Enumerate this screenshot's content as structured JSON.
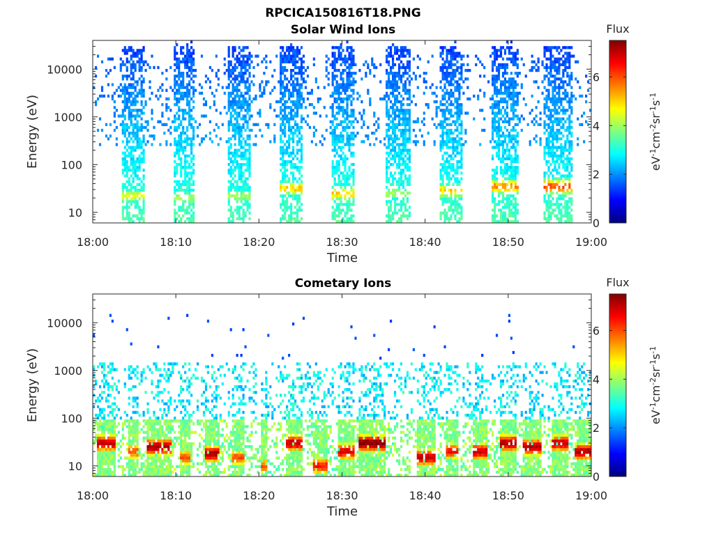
{
  "figure": {
    "title": "RPCICA150816T18.PNG"
  },
  "colormap": [
    "#00007f",
    "#0000ff",
    "#007fff",
    "#00ffff",
    "#7fff7f",
    "#ffff00",
    "#ff7f00",
    "#ff0000",
    "#7f0000"
  ],
  "chart_data": [
    {
      "type": "heatmap",
      "title": "Solar Wind Ions",
      "xlabel": "Time",
      "ylabel": "Energy (eV)",
      "x_ticks": [
        "18:00",
        "18:10",
        "18:20",
        "18:30",
        "18:40",
        "18:50",
        "19:00"
      ],
      "y_ticks": [
        "10",
        "100",
        "1000",
        "10000"
      ],
      "y_scale": "log",
      "ylim": [
        6,
        40000
      ],
      "xlim": [
        "18:00",
        "19:00"
      ],
      "colorbar": {
        "label": "Flux",
        "units": "eV⁻¹cm⁻²sr⁻¹s⁻¹",
        "ticks": [
          "0",
          "2",
          "4",
          "6"
        ],
        "range": [
          0,
          7.5
        ]
      },
      "bursts": [
        {
          "start_min": 3.5,
          "end_min": 6.2,
          "peak_energy_eV": 22,
          "peak_flux": 4.5
        },
        {
          "start_min": 9.8,
          "end_min": 12.3,
          "peak_energy_eV": 20,
          "peak_flux": 4.0
        },
        {
          "start_min": 16.3,
          "end_min": 18.9,
          "peak_energy_eV": 22,
          "peak_flux": 4.0
        },
        {
          "start_min": 22.5,
          "end_min": 25.3,
          "peak_energy_eV": 32,
          "peak_flux": 5.0
        },
        {
          "start_min": 28.8,
          "end_min": 31.5,
          "peak_energy_eV": 25,
          "peak_flux": 5.0
        },
        {
          "start_min": 35.2,
          "end_min": 38.2,
          "peak_energy_eV": 25,
          "peak_flux": 4.0
        },
        {
          "start_min": 41.8,
          "end_min": 44.5,
          "peak_energy_eV": 28,
          "peak_flux": 5.0
        },
        {
          "start_min": 48.0,
          "end_min": 51.2,
          "peak_energy_eV": 35,
          "peak_flux": 5.5
        },
        {
          "start_min": 54.3,
          "end_min": 57.7,
          "peak_energy_eV": 35,
          "peak_flux": 6.0
        }
      ]
    },
    {
      "type": "heatmap",
      "title": "Cometary Ions",
      "xlabel": "Time",
      "ylabel": "Energy (eV)",
      "x_ticks": [
        "18:00",
        "18:10",
        "18:20",
        "18:30",
        "18:40",
        "18:50",
        "19:00"
      ],
      "y_ticks": [
        "10",
        "100",
        "1000",
        "10000"
      ],
      "y_scale": "log",
      "ylim": [
        6,
        40000
      ],
      "xlim": [
        "18:00",
        "19:00"
      ],
      "colorbar": {
        "label": "Flux",
        "units": "eV⁻¹cm⁻²sr⁻¹s⁻¹",
        "ticks": [
          "0",
          "2",
          "4",
          "6"
        ],
        "range": [
          0,
          7.5
        ]
      },
      "bursts": [
        {
          "start_min": 0.5,
          "end_min": 2.8,
          "peak_energy_eV": 30,
          "peak_flux": 7.0
        },
        {
          "start_min": 4.2,
          "end_min": 5.6,
          "peak_energy_eV": 20,
          "peak_flux": 6.0
        },
        {
          "start_min": 6.5,
          "end_min": 9.6,
          "peak_energy_eV": 25,
          "peak_flux": 7.2
        },
        {
          "start_min": 10.5,
          "end_min": 11.8,
          "peak_energy_eV": 15,
          "peak_flux": 6.0
        },
        {
          "start_min": 13.5,
          "end_min": 15.3,
          "peak_energy_eV": 18,
          "peak_flux": 7.2
        },
        {
          "start_min": 16.8,
          "end_min": 18.2,
          "peak_energy_eV": 15,
          "peak_flux": 6.0
        },
        {
          "start_min": 20.2,
          "end_min": 20.9,
          "peak_energy_eV": 10,
          "peak_flux": 6.0
        },
        {
          "start_min": 23.3,
          "end_min": 25.3,
          "peak_energy_eV": 30,
          "peak_flux": 7.0
        },
        {
          "start_min": 26.5,
          "end_min": 28.2,
          "peak_energy_eV": 10,
          "peak_flux": 6.5
        },
        {
          "start_min": 29.5,
          "end_min": 31.5,
          "peak_energy_eV": 20,
          "peak_flux": 6.8
        },
        {
          "start_min": 32.0,
          "end_min": 35.2,
          "peak_energy_eV": 30,
          "peak_flux": 7.5
        },
        {
          "start_min": 39.0,
          "end_min": 41.3,
          "peak_energy_eV": 15,
          "peak_flux": 7.0
        },
        {
          "start_min": 42.5,
          "end_min": 43.9,
          "peak_energy_eV": 20,
          "peak_flux": 6.5
        },
        {
          "start_min": 45.8,
          "end_min": 47.6,
          "peak_energy_eV": 20,
          "peak_flux": 7.0
        },
        {
          "start_min": 49.0,
          "end_min": 51.0,
          "peak_energy_eV": 30,
          "peak_flux": 7.2
        },
        {
          "start_min": 51.8,
          "end_min": 54.0,
          "peak_energy_eV": 25,
          "peak_flux": 7.2
        },
        {
          "start_min": 55.2,
          "end_min": 57.2,
          "peak_energy_eV": 30,
          "peak_flux": 7.0
        },
        {
          "start_min": 58.0,
          "end_min": 60.0,
          "peak_energy_eV": 20,
          "peak_flux": 7.2
        }
      ]
    }
  ]
}
